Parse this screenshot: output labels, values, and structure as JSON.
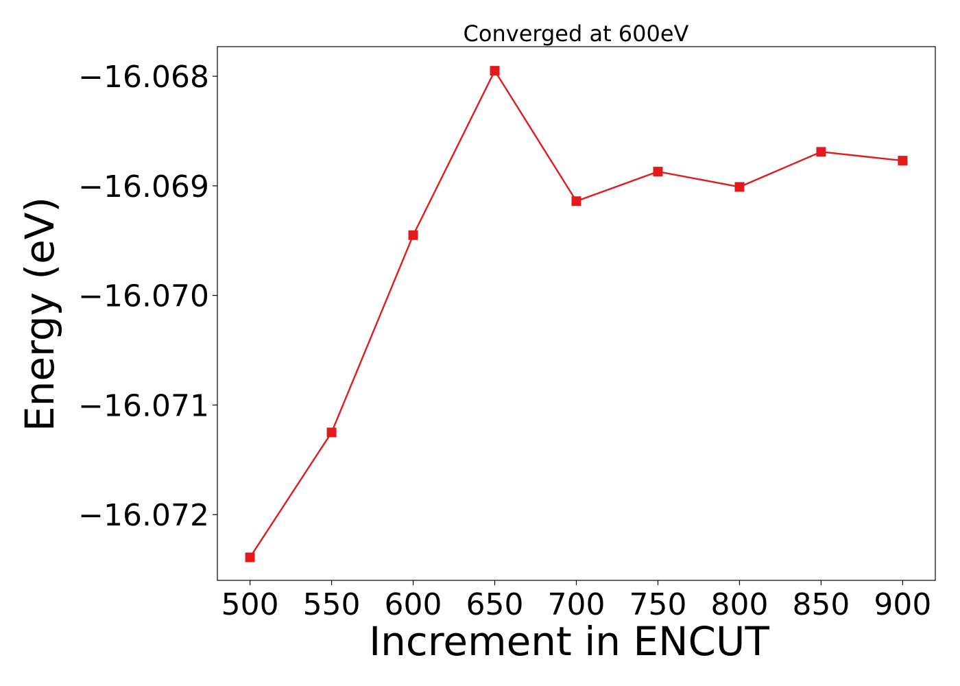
{
  "chart_data": {
    "type": "line",
    "title": "Converged at 600eV",
    "xlabel": "Increment in ENCUT",
    "ylabel": "Energy (eV)",
    "x": [
      500,
      550,
      600,
      650,
      700,
      750,
      800,
      850,
      900
    ],
    "xlim": [
      480,
      920
    ],
    "ylim": [
      -16.0726,
      -16.06773
    ],
    "x_ticks": [
      500,
      550,
      600,
      650,
      700,
      750,
      800,
      850,
      900
    ],
    "x_tick_labels": [
      "500",
      "550",
      "600",
      "650",
      "700",
      "750",
      "800",
      "850",
      "900"
    ],
    "y_ticks": [
      -16.068,
      -16.069,
      -16.07,
      -16.071,
      -16.072
    ],
    "y_tick_labels": [
      "−16.068",
      "−16.069",
      "−16.070",
      "−16.071",
      "−16.072"
    ],
    "grid": false,
    "legend": "none",
    "series": [
      {
        "color": "#e31a1c",
        "marker": "square",
        "values": [
          -16.07239,
          -16.07125,
          -16.06945,
          -16.06795,
          -16.06914,
          -16.06887,
          -16.06901,
          -16.06869,
          -16.06877
        ]
      }
    ]
  }
}
